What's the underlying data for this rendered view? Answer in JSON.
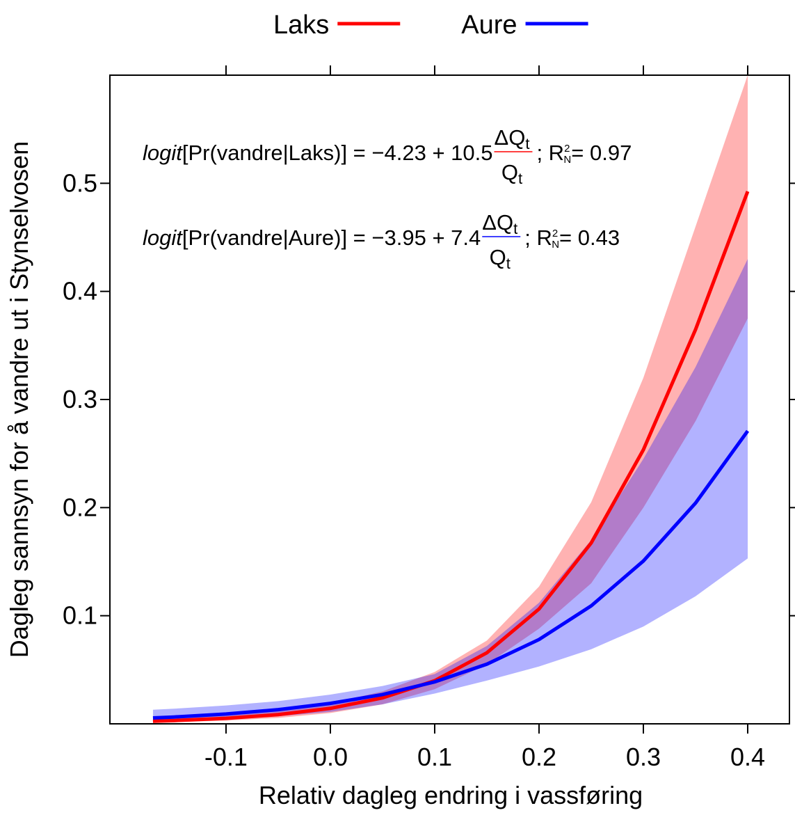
{
  "chart_data": {
    "type": "line",
    "x_label": "Relativ dagleg endring i vassføring",
    "y_label": "Dagleg sannsyn for å vandre ut i Stynselvosen",
    "legend": "top",
    "x": [
      -0.17,
      -0.15,
      -0.1,
      -0.05,
      0,
      0.05,
      0.1,
      0.15,
      0.2,
      0.25,
      0.3,
      0.35,
      0.4
    ],
    "series": [
      {
        "name": "Laks",
        "color": "#ff0000",
        "band_color": "rgba(255,0,0,0.3)",
        "values": [
          0.00244,
          0.003,
          0.00506,
          0.00853,
          0.0143,
          0.024,
          0.0399,
          0.0657,
          0.1062,
          0.1673,
          0.2535,
          0.3647,
          0.4925
        ],
        "lower": [
          0.0012,
          0.0016,
          0.003,
          0.0055,
          0.01,
          0.018,
          0.032,
          0.055,
          0.088,
          0.13,
          0.2,
          0.28,
          0.375
        ],
        "upper": [
          0.0045,
          0.0054,
          0.0082,
          0.0125,
          0.019,
          0.03,
          0.048,
          0.077,
          0.127,
          0.205,
          0.32,
          0.46,
          0.6
        ]
      },
      {
        "name": "Aure",
        "color": "#0000ff",
        "band_color": "rgba(0,0,255,0.3)",
        "values": [
          0.00544,
          0.00631,
          0.0091,
          0.0131,
          0.0189,
          0.0271,
          0.0388,
          0.0552,
          0.078,
          0.1091,
          0.1506,
          0.2042,
          0.2709
        ],
        "lower": [
          0.002,
          0.0025,
          0.004,
          0.007,
          0.011,
          0.018,
          0.028,
          0.04,
          0.053,
          0.069,
          0.09,
          0.118,
          0.153
        ],
        "upper": [
          0.013,
          0.014,
          0.017,
          0.021,
          0.027,
          0.035,
          0.046,
          0.072,
          0.112,
          0.17,
          0.245,
          0.33,
          0.43
        ]
      }
    ],
    "annotations": [
      {
        "color": "#ff0000",
        "italic": "logit",
        "text": "[Pr(vandre|Laks)] = −4.23 + 10.5",
        "numerator": "ΔQ",
        "denominator": "Q",
        "subscript": "t",
        "r": "; R",
        "r_sup": "2",
        "r_sub": "N",
        "tail": "= 0.97"
      },
      {
        "color": "#0000ff",
        "italic": "logit",
        "text": "[Pr(vandre|Aure)] = −3.95 + 7.4",
        "numerator": "ΔQ",
        "denominator": "Q",
        "subscript": "t",
        "r": "; R",
        "r_sup": "2",
        "r_sub": "N",
        "tail": "= 0.43"
      }
    ],
    "xlim": [
      -0.2113,
      0.44
    ],
    "ylim": [
      0,
      0.6
    ],
    "xticks": [
      {
        "value": -0.1,
        "label": "-0.1"
      },
      {
        "value": 0,
        "label": "0.0"
      },
      0.1,
      0.2,
      0.3,
      0.4
    ],
    "yticks": [
      0.1,
      0.2,
      0.3,
      0.4,
      0.5
    ]
  }
}
